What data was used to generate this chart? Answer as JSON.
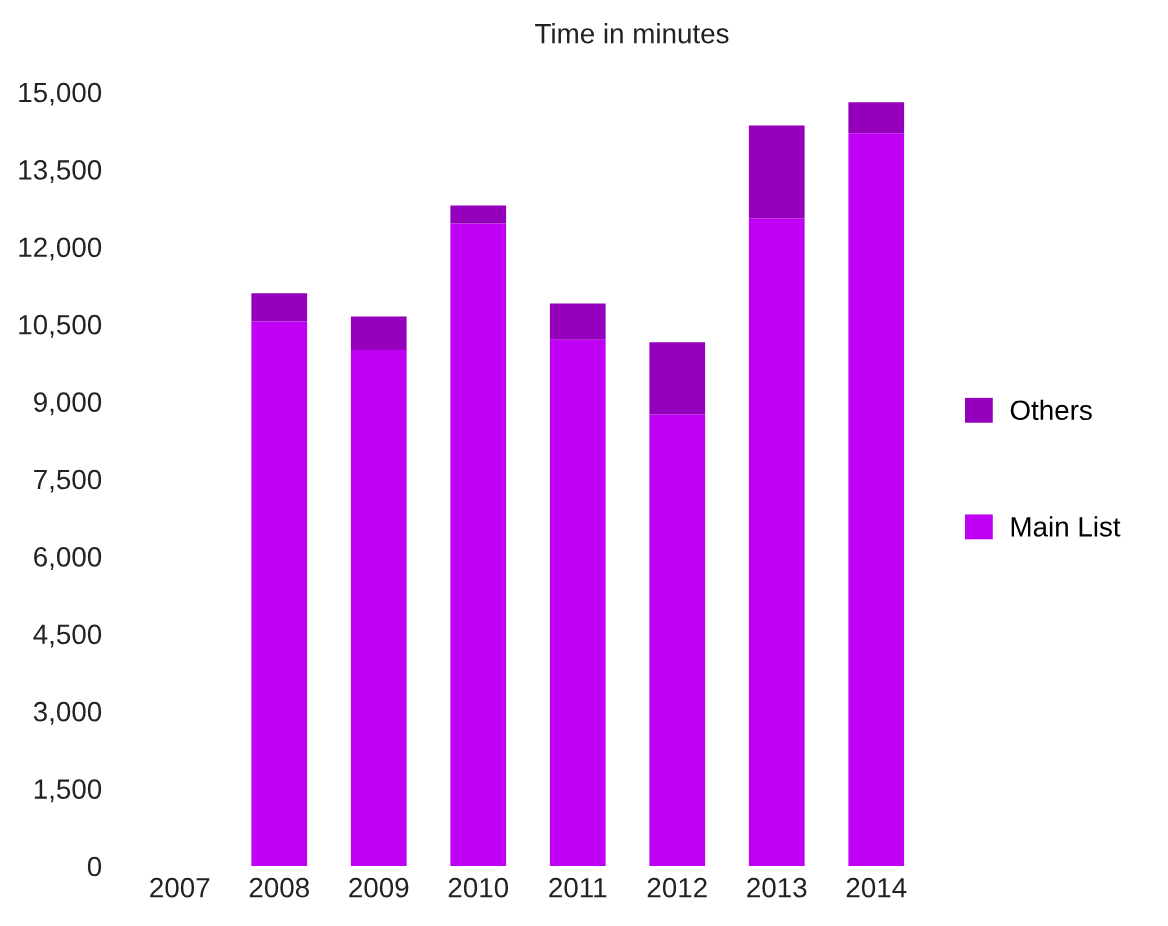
{
  "chart_data": {
    "type": "bar",
    "title": "Time in minutes",
    "stacked": true,
    "categories": [
      "2007",
      "2008",
      "2009",
      "2010",
      "2011",
      "2012",
      "2013",
      "2014"
    ],
    "series": [
      {
        "name": "Main List",
        "color": "#c000f4",
        "values": [
          null,
          10550,
          10000,
          12450,
          10200,
          8750,
          12550,
          14200
        ]
      },
      {
        "name": "Others",
        "color": "#9500bd",
        "values": [
          null,
          550,
          650,
          350,
          700,
          1400,
          1800,
          600
        ]
      }
    ],
    "ylim": [
      0,
      15000
    ],
    "yticks": [
      {
        "value": 0,
        "label": "0"
      },
      {
        "value": 1500,
        "label": "1,500"
      },
      {
        "value": 3000,
        "label": "3,000"
      },
      {
        "value": 4500,
        "label": "4,500"
      },
      {
        "value": 6000,
        "label": "6,000"
      },
      {
        "value": 7500,
        "label": "7,500"
      },
      {
        "value": 9000,
        "label": "9,000"
      },
      {
        "value": 10500,
        "label": "10,500"
      },
      {
        "value": 12000,
        "label": "12,000"
      },
      {
        "value": 13500,
        "label": "13,500"
      },
      {
        "value": 15000,
        "label": "15,000"
      }
    ],
    "legend": "right",
    "grid": false
  }
}
